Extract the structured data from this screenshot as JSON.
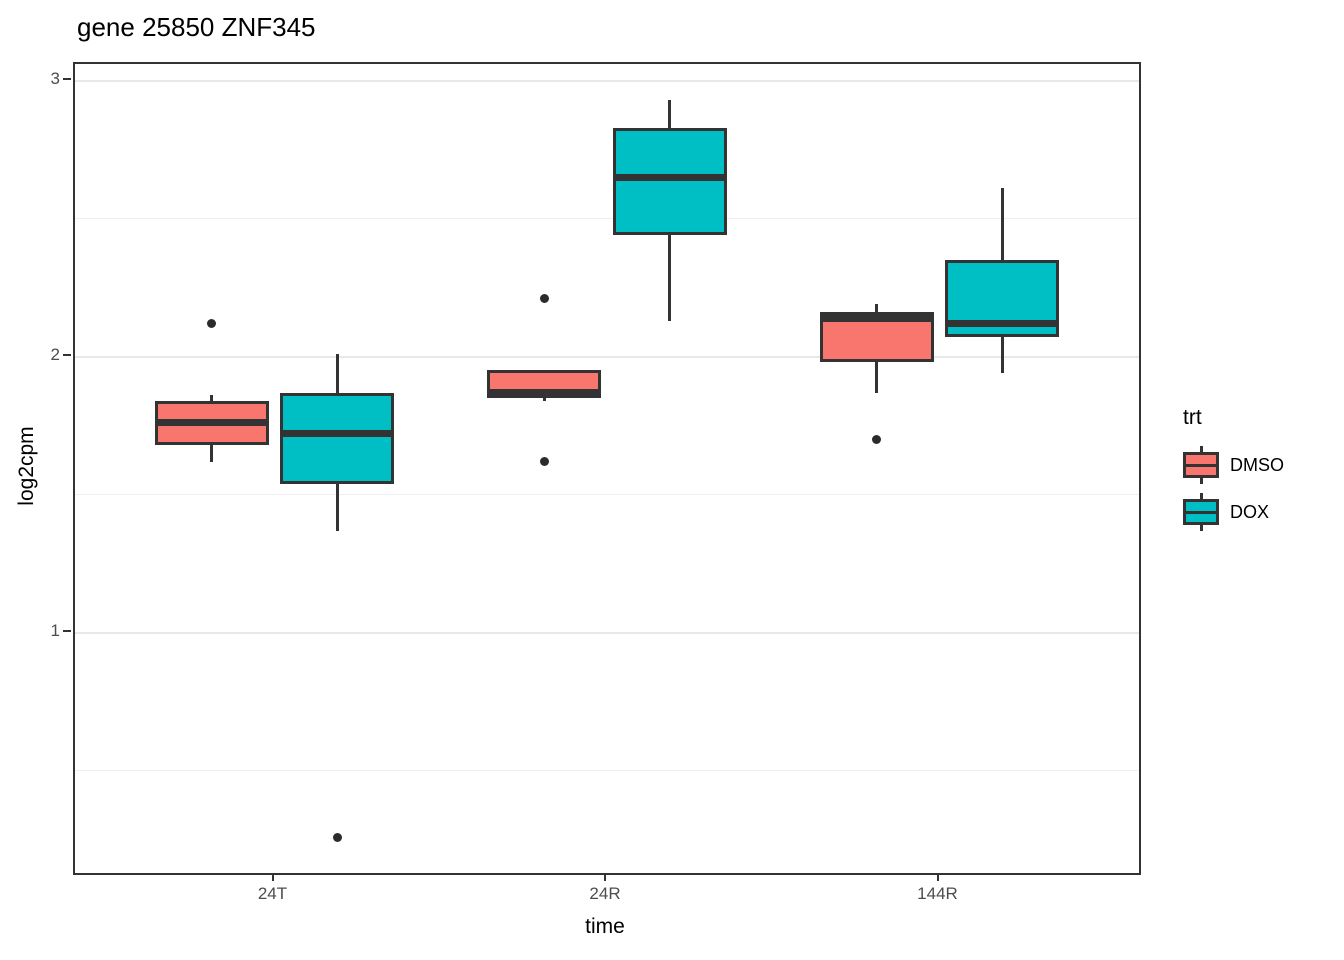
{
  "title": "gene 25850 ZNF345",
  "axes": {
    "x": {
      "label": "time",
      "tick_labels": [
        "24T",
        "24R",
        "144R"
      ]
    },
    "y": {
      "label": "log2cpm",
      "tick_labels": [
        "1",
        "2",
        "3"
      ]
    }
  },
  "legend": {
    "title": "trt",
    "items": [
      {
        "label": "DMSO",
        "color": "#F8766D"
      },
      {
        "label": "DOX",
        "color": "#00BFC4"
      }
    ]
  },
  "colors": {
    "dmso_fill": "#F8766D",
    "dox_fill": "#00BFC4",
    "stroke": "#333333",
    "grid_major": "#E8E8E8",
    "grid_minor": "#EFEFEF",
    "tick_text": "#4D4D4D",
    "background": "#FFFFFF"
  },
  "chart_data": {
    "type": "boxplot",
    "title": "gene 25850 ZNF345",
    "xlabel": "time",
    "ylabel": "log2cpm",
    "legend_title": "trt",
    "legend_position": "right",
    "grid": true,
    "categories": [
      "24T",
      "24R",
      "144R"
    ],
    "yticks": [
      1,
      2,
      3
    ],
    "minor_gridlines": [
      0.5,
      1.5,
      2.5
    ],
    "ylim": [
      0.13,
      3.06
    ],
    "series": [
      {
        "name": "DMSO",
        "color": "#F8766D",
        "boxes": [
          {
            "category": "24T",
            "whisker_low": 1.62,
            "q1": 1.68,
            "median": 1.76,
            "q3": 1.84,
            "whisker_high": 1.86,
            "outliers": [
              2.12
            ]
          },
          {
            "category": "24R",
            "whisker_low": 1.84,
            "q1": 1.85,
            "median": 1.87,
            "q3": 1.95,
            "whisker_high": 1.95,
            "outliers": [
              2.21,
              1.62
            ]
          },
          {
            "category": "144R",
            "whisker_low": 1.87,
            "q1": 1.98,
            "median": 2.14,
            "q3": 2.16,
            "whisker_high": 2.19,
            "outliers": [
              1.7
            ]
          }
        ]
      },
      {
        "name": "DOX",
        "color": "#00BFC4",
        "boxes": [
          {
            "category": "24T",
            "whisker_low": 1.37,
            "q1": 1.54,
            "median": 1.72,
            "q3": 1.87,
            "whisker_high": 2.01,
            "outliers": [
              0.26
            ]
          },
          {
            "category": "24R",
            "whisker_low": 2.13,
            "q1": 2.44,
            "median": 2.65,
            "q3": 2.83,
            "whisker_high": 2.93,
            "outliers": []
          },
          {
            "category": "144R",
            "whisker_low": 1.94,
            "q1": 2.07,
            "median": 2.12,
            "q3": 2.35,
            "whisker_high": 2.61,
            "outliers": []
          }
        ]
      }
    ]
  }
}
